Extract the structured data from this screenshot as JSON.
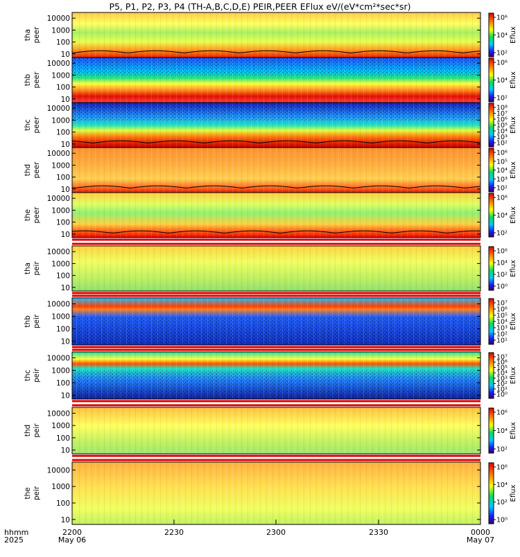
{
  "title": "P5, P1, P2, P3, P4 (TH-A,B,C,D,E) PEIR,PEER EFlux eV/(eV*cm²*sec*sr)",
  "colorbar_label": "Eflux",
  "time_axis": {
    "row1_label": "hhmm",
    "row2_label": "2025",
    "ticks": [
      {
        "time": "2200",
        "date": "May 06"
      },
      {
        "time": "2230",
        "date": ""
      },
      {
        "time": "2300",
        "date": ""
      },
      {
        "time": "2330",
        "date": ""
      },
      {
        "time": "0000",
        "date": "May 07"
      }
    ]
  },
  "chart_data": {
    "type": "heatmap",
    "x_range": [
      "2025-05-06 22:00",
      "2025-05-07 00:00"
    ],
    "y_scale": "log",
    "y_units": "eV",
    "panels": [
      {
        "probe": "tha",
        "species": "peer",
        "ylabel_top": "tha",
        "ylabel_bottom": "peer",
        "y_ticks": [
          "10000",
          "1000",
          "100",
          "10"
        ],
        "ylim": [
          5,
          30000
        ],
        "colorbar_ticks": [
          "10⁶",
          "10⁴",
          "10²"
        ],
        "has_density_line": true
      },
      {
        "probe": "thb",
        "species": "peer",
        "ylabel_top": "thb",
        "ylabel_bottom": "peer",
        "y_ticks": [
          "10000",
          "1000",
          "100",
          "10"
        ],
        "ylim": [
          5,
          30000
        ],
        "colorbar_ticks": [
          "10⁶",
          "10⁴",
          "10²"
        ],
        "has_density_line": false
      },
      {
        "probe": "thc",
        "species": "peer",
        "ylabel_top": "thc",
        "ylabel_bottom": "peer",
        "y_ticks": [
          "10000",
          "1000",
          "100",
          "10"
        ],
        "ylim": [
          5,
          30000
        ],
        "colorbar_ticks": [
          "10⁸",
          "10⁷",
          "10⁶",
          "10⁵",
          "10⁴",
          "10³",
          "10²"
        ],
        "has_density_line": true
      },
      {
        "probe": "thd",
        "species": "peer",
        "ylabel_top": "thd",
        "ylabel_bottom": "peer",
        "y_ticks": [
          "10000",
          "1000",
          "100",
          "10"
        ],
        "ylim": [
          5,
          30000
        ],
        "colorbar_ticks": [
          "10⁶",
          "10⁵",
          "10⁴",
          "10³",
          "10²"
        ],
        "has_density_line": true
      },
      {
        "probe": "the",
        "species": "peer",
        "ylabel_top": "the",
        "ylabel_bottom": "peer",
        "y_ticks": [
          "10000",
          "1000",
          "100",
          "10"
        ],
        "ylim": [
          5,
          30000
        ],
        "colorbar_ticks": [
          "10⁶",
          "10⁴",
          "10²"
        ],
        "has_density_line": true
      },
      {
        "probe": "tha",
        "species": "peir",
        "ylabel_top": "tha",
        "ylabel_bottom": "peir",
        "y_ticks": [
          "10000",
          "1000",
          "100",
          "10"
        ],
        "ylim": [
          5,
          30000
        ],
        "colorbar_ticks": [
          "10⁶",
          "10⁴",
          "10²",
          "10⁰"
        ],
        "has_density_line": false
      },
      {
        "probe": "thb",
        "species": "peir",
        "ylabel_top": "thb",
        "ylabel_bottom": "peir",
        "y_ticks": [
          "10000",
          "1000",
          "100",
          "10"
        ],
        "ylim": [
          5,
          30000
        ],
        "colorbar_ticks": [
          "10⁷",
          "10⁶",
          "10⁵",
          "10⁴",
          "10³",
          "10²",
          "10¹"
        ],
        "has_density_line": false
      },
      {
        "probe": "thc",
        "species": "peir",
        "ylabel_top": "thc",
        "ylabel_bottom": "peir",
        "y_ticks": [
          "10000",
          "1000",
          "100",
          "10"
        ],
        "ylim": [
          5,
          30000
        ],
        "colorbar_ticks": [
          "10⁷",
          "10⁶",
          "10⁵",
          "10⁴",
          "10³",
          "10²",
          "10¹",
          "10⁰"
        ],
        "has_density_line": false
      },
      {
        "probe": "thd",
        "species": "peir",
        "ylabel_top": "thd",
        "ylabel_bottom": "peir",
        "y_ticks": [
          "10000",
          "1000",
          "100",
          "10"
        ],
        "ylim": [
          5,
          30000
        ],
        "colorbar_ticks": [
          "10⁶",
          "10⁴",
          "10²"
        ],
        "has_density_line": false
      },
      {
        "probe": "the",
        "species": "peir",
        "ylabel_top": "the",
        "ylabel_bottom": "peir",
        "y_ticks": [
          "10000",
          "1000",
          "100",
          "10"
        ],
        "ylim": [
          5,
          30000
        ],
        "colorbar_ticks": [
          "10⁶",
          "10⁴",
          "10²",
          "10⁰"
        ],
        "has_density_line": false
      }
    ]
  }
}
